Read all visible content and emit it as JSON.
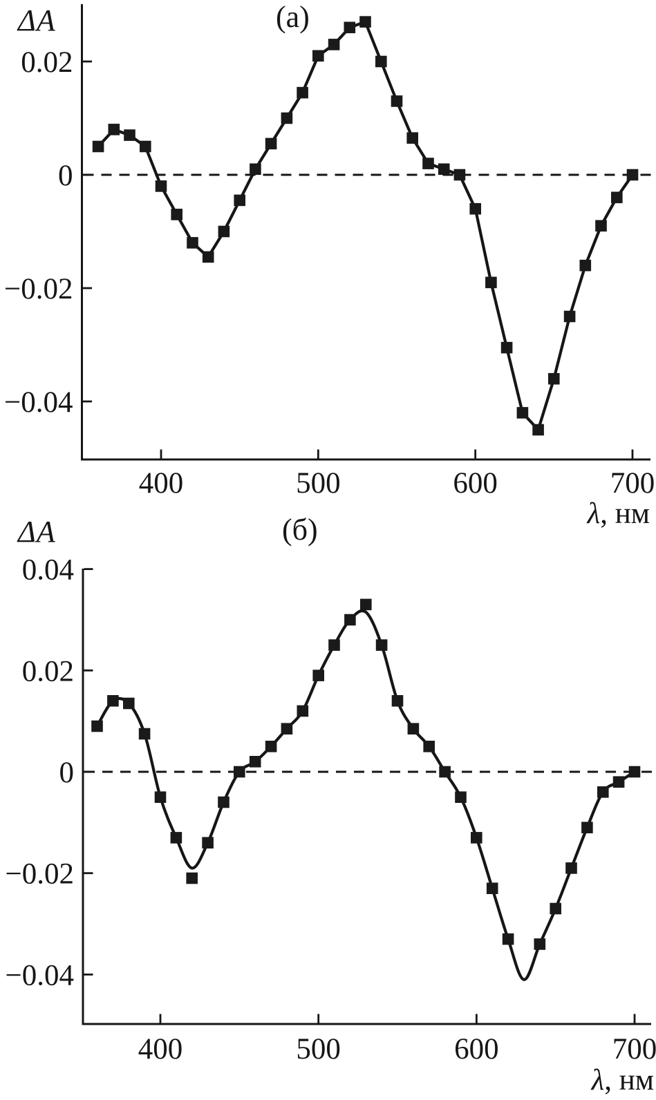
{
  "chart_data": [
    {
      "panel": "a",
      "type": "line",
      "title": "(а)",
      "ylabel": "ΔA",
      "xlabel": "λ, нм",
      "xlabel_symbol": "λ",
      "xlabel_units": ", нм",
      "x_ticks": [
        400,
        500,
        600,
        700
      ],
      "x_tick_labels": [
        "400",
        "500",
        "600",
        "700"
      ],
      "y_ticks": [
        0.02,
        0,
        -0.02,
        -0.04
      ],
      "y_tick_labels": [
        "0.02",
        "0",
        "−0.02",
        "−0.04"
      ],
      "xlim": [
        350,
        711
      ],
      "ylim": [
        -0.0503,
        0.0302
      ],
      "zero_line": "dashed",
      "line_style": "straight",
      "marker": "filled-square",
      "line_color": "#161616",
      "background": "#ffffff",
      "x": [
        360,
        370,
        380,
        390,
        400,
        410,
        420,
        430,
        440,
        450,
        460,
        470,
        480,
        490,
        500,
        510,
        520,
        530,
        540,
        550,
        560,
        570,
        580,
        590,
        600,
        610,
        620,
        630,
        640,
        650,
        660,
        670,
        680,
        690,
        700
      ],
      "y": [
        0.005,
        0.008,
        0.007,
        0.005,
        -0.002,
        -0.007,
        -0.012,
        -0.0145,
        -0.01,
        -0.0045,
        0.001,
        0.0055,
        0.01,
        0.0145,
        0.021,
        0.023,
        0.026,
        0.027,
        0.02,
        0.013,
        0.0065,
        0.002,
        0.001,
        0.0,
        -0.006,
        -0.019,
        -0.0305,
        -0.042,
        -0.045,
        -0.036,
        -0.025,
        -0.016,
        -0.009,
        -0.004,
        0.0
      ]
    },
    {
      "panel": "b",
      "type": "line",
      "title": "(б)",
      "ylabel": "ΔA",
      "xlabel": "λ, нм",
      "xlabel_symbol": "λ",
      "xlabel_units": ", нм",
      "x_ticks": [
        400,
        500,
        600,
        700
      ],
      "x_tick_labels": [
        "400",
        "500",
        "600",
        "700"
      ],
      "y_ticks": [
        0.04,
        0.02,
        0,
        -0.02,
        -0.04
      ],
      "y_tick_labels": [
        "0.04",
        "0.02",
        "0",
        "−0.02",
        "−0.04"
      ],
      "xlim": [
        350,
        712
      ],
      "ylim": [
        -0.0499,
        0.0404
      ],
      "zero_line": "dashed",
      "line_style": "smooth",
      "marker": "filled-square",
      "line_color": "#161616",
      "background": "#ffffff",
      "x": [
        360,
        370,
        380,
        390,
        400,
        410,
        420,
        430,
        440,
        450,
        460,
        470,
        480,
        490,
        500,
        510,
        520,
        530,
        540,
        550,
        560,
        570,
        580,
        590,
        600,
        610,
        620,
        640,
        650,
        660,
        670,
        680,
        690,
        700
      ],
      "y": [
        0.009,
        0.014,
        0.0135,
        0.0075,
        -0.005,
        -0.013,
        -0.021,
        -0.014,
        -0.006,
        0.0,
        0.002,
        0.005,
        0.0085,
        0.012,
        0.019,
        0.025,
        0.03,
        0.033,
        0.025,
        0.014,
        0.0085,
        0.005,
        0.0,
        -0.005,
        -0.013,
        -0.023,
        -0.033,
        -0.034,
        -0.027,
        -0.019,
        -0.011,
        -0.004,
        -0.002,
        0.0
      ],
      "smooth_curve_overrides": [
        {
          "x": 420,
          "y": -0.019
        },
        {
          "x": 530,
          "y": 0.0315
        }
      ],
      "smooth_curve_inserts": [
        {
          "x": 630,
          "y": -0.041
        }
      ]
    }
  ]
}
